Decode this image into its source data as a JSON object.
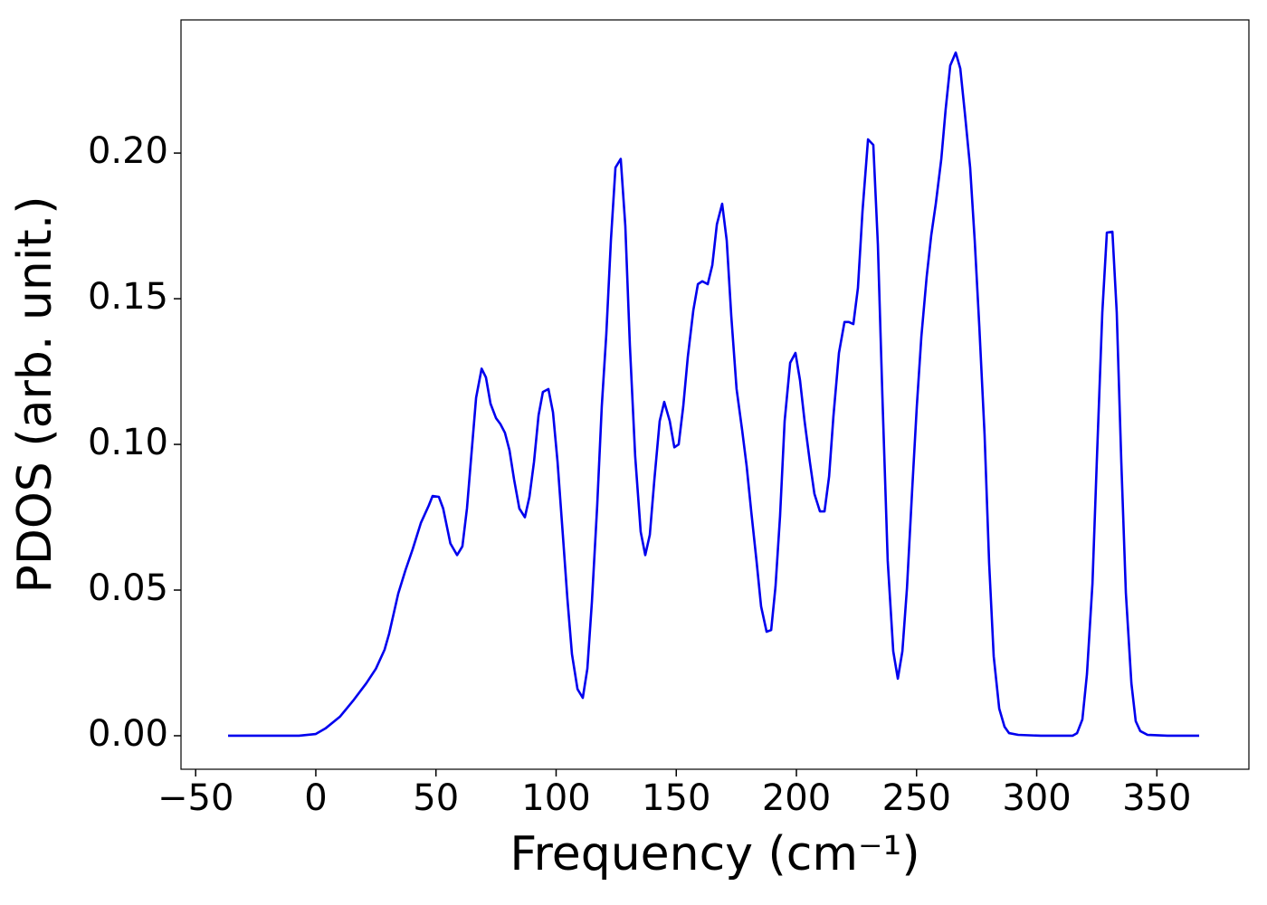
{
  "chart_data": {
    "type": "line",
    "x_label": "Frequency (cm⁻¹)",
    "y_label": "PDOS (arb. unit.)",
    "color": "#0000ee",
    "x": [
      -36.5,
      -7,
      0,
      4,
      10,
      15.5,
      21,
      25,
      28.6,
      30.5,
      34.3,
      37.3,
      40.3,
      43.7,
      47,
      48.6,
      51.2,
      53,
      56,
      58.8,
      61,
      62.9,
      64.8,
      66.7,
      69,
      70.8,
      72.7,
      75,
      76.8,
      78.7,
      80.6,
      82.5,
      84.7,
      87,
      88.9,
      90.8,
      92.7,
      94.5,
      96.8,
      98.7,
      100.6,
      102.8,
      104.7,
      106.6,
      108.9,
      111.1,
      113,
      114.9,
      117.1,
      119,
      120.9,
      122.8,
      124.7,
      126.9,
      128.8,
      130.7,
      132.9,
      135.2,
      137.1,
      139,
      140.9,
      143.1,
      145,
      147.3,
      149.2,
      151,
      152.9,
      154.8,
      157.1,
      159,
      160.8,
      163.1,
      165,
      166.9,
      169.1,
      171,
      172.9,
      175.1,
      177.4,
      179.3,
      181.2,
      183.4,
      185.3,
      187.6,
      189.5,
      191.3,
      193.2,
      195.1,
      197.4,
      199.6,
      201.5,
      203.4,
      205.6,
      207.5,
      209.8,
      211.7,
      213.6,
      215.4,
      217.7,
      220,
      221.8,
      223.7,
      225.6,
      227.5,
      229.8,
      232,
      233.9,
      235.8,
      238,
      240.3,
      242.2,
      244.1,
      246,
      248.2,
      250.1,
      252,
      254.2,
      256.1,
      258,
      260.3,
      262.1,
      264,
      266.3,
      268.2,
      270.1,
      272.3,
      274.2,
      276.1,
      278.3,
      280.2,
      282.1,
      284.4,
      286.6,
      288.5,
      292.3,
      301.7,
      314.9,
      316.8,
      319,
      320.9,
      323.2,
      325,
      327.3,
      329.2,
      331.5,
      333.3,
      335.2,
      337.1,
      339.4,
      341.2,
      343.1,
      346.1,
      354.4,
      367.6
    ],
    "values": [
      0,
      0,
      0.0006,
      0.0025,
      0.0065,
      0.012,
      0.018,
      0.023,
      0.0295,
      0.035,
      0.0488,
      0.0568,
      0.064,
      0.073,
      0.079,
      0.0823,
      0.082,
      0.078,
      0.066,
      0.062,
      0.065,
      0.078,
      0.097,
      0.116,
      0.126,
      0.123,
      0.114,
      0.109,
      0.107,
      0.104,
      0.098,
      0.088,
      0.078,
      0.075,
      0.082,
      0.094,
      0.11,
      0.118,
      0.119,
      0.111,
      0.094,
      0.069,
      0.047,
      0.028,
      0.016,
      0.013,
      0.023,
      0.046,
      0.079,
      0.113,
      0.138,
      0.17,
      0.195,
      0.198,
      0.175,
      0.134,
      0.096,
      0.07,
      0.062,
      0.069,
      0.088,
      0.108,
      0.1146,
      0.108,
      0.099,
      0.1,
      0.113,
      0.13,
      0.146,
      0.155,
      0.156,
      0.155,
      0.1615,
      0.1755,
      0.1826,
      0.17,
      0.144,
      0.119,
      0.105,
      0.0925,
      0.077,
      0.06,
      0.0444,
      0.0357,
      0.0363,
      0.0512,
      0.0755,
      0.108,
      0.128,
      0.1314,
      0.122,
      0.108,
      0.094,
      0.083,
      0.077,
      0.077,
      0.089,
      0.1096,
      0.1314,
      0.142,
      0.142,
      0.1413,
      0.1537,
      0.18,
      0.2047,
      0.2028,
      0.1686,
      0.116,
      0.06,
      0.029,
      0.0196,
      0.029,
      0.0506,
      0.0848,
      0.113,
      0.137,
      0.1575,
      0.1717,
      0.1826,
      0.198,
      0.215,
      0.23,
      0.2345,
      0.229,
      0.2137,
      0.195,
      0.17,
      0.1407,
      0.1034,
      0.0593,
      0.0273,
      0.0093,
      0.0031,
      0.0009,
      0.0003,
      0,
      0,
      0.0009,
      0.0056,
      0.0211,
      0.0522,
      0.094,
      0.1453,
      0.1727,
      0.173,
      0.1453,
      0.094,
      0.049,
      0.018,
      0.005,
      0.0016,
      0.0003,
      0,
      0
    ],
    "xlim": [
      -56.1,
      388.3
    ],
    "ylim": [
      -0.0115,
      0.2457
    ],
    "xticks": [
      {
        "value": -50,
        "label": "−50"
      },
      0,
      50,
      100,
      150,
      200,
      250,
      300,
      350
    ],
    "yticks": [
      {
        "value": 0,
        "label": "0.00"
      },
      {
        "value": 0.05,
        "label": "0.05"
      },
      {
        "value": 0.1,
        "label": "0.10"
      },
      {
        "value": 0.15,
        "label": "0.15"
      },
      {
        "value": 0.2,
        "label": "0.20"
      }
    ],
    "grid": false
  }
}
